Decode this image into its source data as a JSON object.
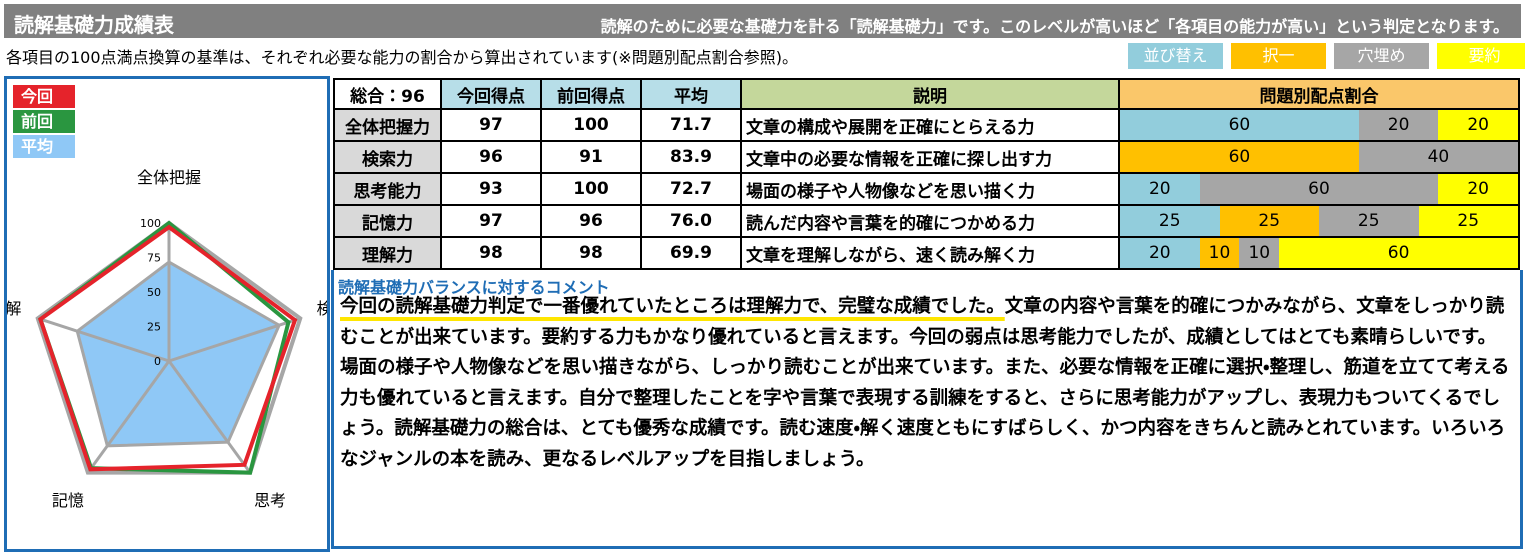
{
  "header": {
    "title": "読解基礎力成績表",
    "description": "読解のために必要な基礎力を計る「読解基礎力」です。このレベルが高いほど「各項目の能力が高い」という判定となります。"
  },
  "note": "各項目の100点満点換算の基準は、それぞれ必要な能力の割合から算出されています(※問題別配点割合参照)。",
  "question_types": [
    {
      "label": "並び替え",
      "color": "#92cddc"
    },
    {
      "label": "択一",
      "color": "#ffc000"
    },
    {
      "label": "穴埋め",
      "color": "#a6a6a6"
    },
    {
      "label": "要約",
      "color": "#ffff00"
    }
  ],
  "chart_data": {
    "type": "radar",
    "categories": [
      "全体把握",
      "検索",
      "思考",
      "記憶",
      "理解"
    ],
    "series": [
      {
        "name": "平均",
        "color": "#8fc8f6",
        "values": [
          71.7,
          83.9,
          72.7,
          76.0,
          69.9
        ]
      },
      {
        "name": "前回",
        "color": "#2a9640",
        "values": [
          100,
          91,
          100,
          96,
          98
        ]
      },
      {
        "name": "今回",
        "color": "#e5232b",
        "values": [
          97,
          96,
          93,
          97,
          98
        ]
      }
    ],
    "rlim": [
      0,
      100
    ],
    "rticks": [
      0,
      25,
      50,
      75,
      100
    ]
  },
  "table": {
    "total": "総合：96",
    "headers": [
      "今回得点",
      "前回得点",
      "平均",
      "説明",
      "問題別配点割合"
    ],
    "rows": [
      {
        "label": "全体把握力",
        "current": 97,
        "previous": 100,
        "average": "71.7",
        "description": "文章の構成や展開を正確にとらえる力",
        "segments": [
          {
            "value": 60,
            "color": "#92cddc"
          },
          {
            "value": 20,
            "color": "#a6a6a6"
          },
          {
            "value": 20,
            "color": "#ffff00"
          }
        ]
      },
      {
        "label": "検索力",
        "current": 96,
        "previous": 91,
        "average": "83.9",
        "description": "文章中の必要な情報を正確に探し出す力",
        "segments": [
          {
            "value": 60,
            "color": "#ffc000"
          },
          {
            "value": 40,
            "color": "#a6a6a6"
          }
        ]
      },
      {
        "label": "思考能力",
        "current": 93,
        "previous": 100,
        "average": "72.7",
        "description": "場面の様子や人物像などを思い描く力",
        "segments": [
          {
            "value": 20,
            "color": "#92cddc"
          },
          {
            "value": 60,
            "color": "#a6a6a6"
          },
          {
            "value": 20,
            "color": "#ffff00"
          }
        ]
      },
      {
        "label": "記憶力",
        "current": 97,
        "previous": 96,
        "average": "76.0",
        "description": "読んだ内容や言葉を的確につかめる力",
        "segments": [
          {
            "value": 25,
            "color": "#92cddc"
          },
          {
            "value": 25,
            "color": "#ffc000"
          },
          {
            "value": 25,
            "color": "#a6a6a6"
          },
          {
            "value": 25,
            "color": "#ffff00"
          }
        ]
      },
      {
        "label": "理解力",
        "current": 98,
        "previous": 98,
        "average": "69.9",
        "description": "文章を理解しながら、速く読み解く力",
        "segments": [
          {
            "value": 20,
            "color": "#92cddc"
          },
          {
            "value": 10,
            "color": "#ffc000"
          },
          {
            "value": 10,
            "color": "#a6a6a6"
          },
          {
            "value": 60,
            "color": "#ffff00"
          }
        ]
      }
    ]
  },
  "comment": {
    "title": "読解基礎力バランスに対するコメント",
    "highlight": "今回の読解基礎力判定で一番優れていたところは理解力で、完璧な成績でした。",
    "body": "文章の内容や言葉を的確につかみながら、文章をしっかり読むことが出来ています。要約する力もかなり優れていると言えます。今回の弱点は思考能力でしたが、成績としてはとても素晴らしいです。場面の様子や人物像などを思い描きながら、しっかり読むことが出来ています。また、必要な情報を正確に選択・整理し、筋道を立てて考える力も優れていると言えます。自分で整理したことを字や言葉で表現する訓練をすると、さらに思考能力がアップし、表現力もついてくるでしょう。読解基礎力の総合は、とても優秀な成績です。読む速度・解く速度ともにすばらしく、かつ内容をきちんと読みとれています。いろいろなジャンルの本を読み、更なるレベルアップを目指しましょう。"
  }
}
